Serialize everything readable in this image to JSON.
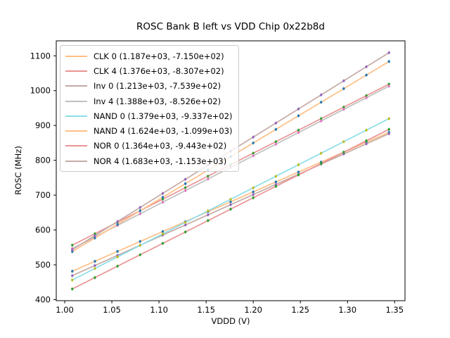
{
  "chart_data": {
    "type": "line",
    "title": "ROSC Bank B left vs VDD Chip 0x22b8d",
    "xlabel": "VDDD (V)",
    "ylabel": "ROSC (MHz)",
    "xlim": [
      0.991,
      1.361
    ],
    "ylim": [
      397,
      1143
    ],
    "xticks": [
      "1.00",
      "1.05",
      "1.10",
      "1.15",
      "1.20",
      "1.25",
      "1.30",
      "1.35"
    ],
    "yticks": [
      400,
      500,
      600,
      700,
      800,
      900,
      1000,
      1100
    ],
    "grid": false,
    "legend_position": "upper left",
    "x": [
      1.008,
      1.032,
      1.056,
      1.08,
      1.104,
      1.128,
      1.152,
      1.176,
      1.2,
      1.224,
      1.248,
      1.272,
      1.296,
      1.32,
      1.344
    ],
    "series": [
      {
        "name": "CLK 0",
        "label": "CLK 0 (1.187e+03, -7.150e+02)",
        "fit": {
          "slope": 1187,
          "intercept": -715.0
        },
        "line_color": "#ffbf86",
        "marker_color": "#1f77b4",
        "values": [
          481.5,
          510.0,
          538.5,
          567.0,
          595.5,
          623.9,
          652.4,
          680.9,
          709.4,
          737.9,
          766.4,
          794.9,
          823.4,
          851.9,
          880.4
        ]
      },
      {
        "name": "CLK 4",
        "label": "CLK 4 (1.376e+03, -8.307e+02)",
        "fit": {
          "slope": 1376,
          "intercept": -830.7
        },
        "line_color": "#eb9393",
        "marker_color": "#2ca02c",
        "values": [
          556.3,
          589.3,
          622.4,
          655.4,
          688.4,
          721.4,
          754.5,
          787.5,
          820.5,
          853.5,
          886.6,
          919.6,
          952.6,
          985.6,
          1018.7
        ]
      },
      {
        "name": "Inv 0",
        "label": "Inv 0 (1.213e+03, -7.539e+02)",
        "fit": {
          "slope": 1213,
          "intercept": -753.9
        },
        "line_color": "#c5aaa5",
        "marker_color": "#9467bd",
        "values": [
          468.8,
          497.9,
          527.0,
          556.1,
          585.3,
          614.4,
          643.5,
          672.6,
          701.7,
          730.8,
          759.9,
          789.1,
          818.2,
          847.3,
          876.4
        ]
      },
      {
        "name": "Inv 4",
        "label": "Inv 4 (1.388e+03, -8.526e+02)",
        "fit": {
          "slope": 1388,
          "intercept": -852.6
        },
        "line_color": "#bfbfbf",
        "marker_color": "#e377c2",
        "values": [
          546.5,
          579.8,
          613.1,
          646.4,
          679.8,
          713.1,
          746.4,
          779.7,
          813.0,
          846.4,
          879.7,
          913.0,
          946.3,
          979.6,
          1013.0
        ]
      },
      {
        "name": "NAND 0",
        "label": "NAND 0 (1.379e+03, -9.337e+02)",
        "fit": {
          "slope": 1379,
          "intercept": -933.7
        },
        "line_color": "#8bdee7",
        "marker_color": "#bcbd22",
        "values": [
          456.3,
          489.4,
          522.5,
          555.6,
          588.7,
          621.8,
          654.9,
          688.0,
          721.1,
          754.2,
          787.3,
          820.4,
          853.5,
          886.6,
          919.7
        ]
      },
      {
        "name": "NAND 4",
        "label": "NAND 4 (1.624e+03, -1.099e+03)",
        "fit": {
          "slope": 1624,
          "intercept": -1099.0
        },
        "line_color": "#ffbf86",
        "marker_color": "#1f77b4",
        "values": [
          538.0,
          577.0,
          616.0,
          654.9,
          693.9,
          732.9,
          771.9,
          810.9,
          849.8,
          888.8,
          927.8,
          966.8,
          1005.8,
          1044.7,
          1083.7
        ]
      },
      {
        "name": "NOR 0",
        "label": "NOR 0 (1.364e+03, -9.443e+02)",
        "fit": {
          "slope": 1364,
          "intercept": -944.3
        },
        "line_color": "#eb9393",
        "marker_color": "#2ca02c",
        "values": [
          430.6,
          463.3,
          496.1,
          528.8,
          561.6,
          594.3,
          627.0,
          659.8,
          692.5,
          725.2,
          758.0,
          790.7,
          823.5,
          856.2,
          888.9
        ]
      },
      {
        "name": "NOR 4",
        "label": "NOR 4 (1.683e+03, -1.153e+03)",
        "fit": {
          "slope": 1683,
          "intercept": -1153.0
        },
        "line_color": "#c5aaa5",
        "marker_color": "#9467bd",
        "values": [
          543.5,
          583.9,
          624.3,
          664.6,
          705.0,
          745.4,
          785.8,
          826.2,
          866.6,
          907.0,
          947.4,
          987.8,
          1028.2,
          1068.6,
          1109.0
        ]
      }
    ]
  }
}
